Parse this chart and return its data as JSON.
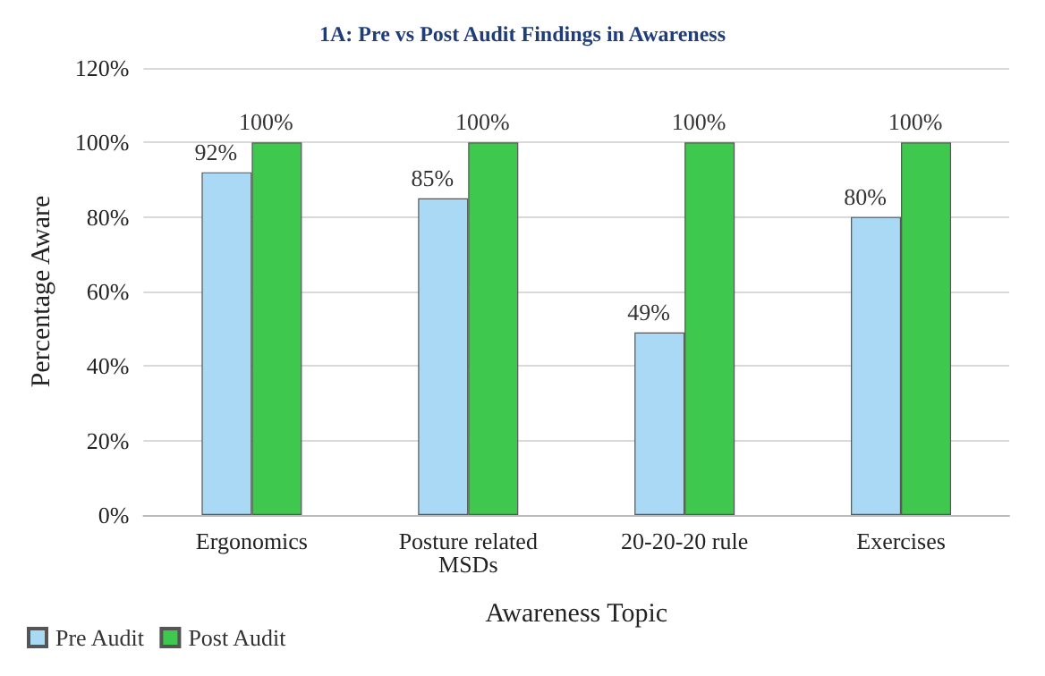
{
  "chart_data": {
    "type": "bar",
    "title": "1A: Pre vs Post Audit Findings in Awareness",
    "xlabel": "Awareness Topic",
    "ylabel": "Percentage Aware",
    "categories": [
      "Ergonomics",
      "Posture related\nMSDs",
      "20-20-20 rule",
      "Exercises"
    ],
    "series": [
      {
        "name": "Pre Audit",
        "color": "#a9d9f5",
        "values": [
          92,
          85,
          49,
          80
        ],
        "value_labels": [
          "92%",
          "85%",
          "49%",
          "80%"
        ]
      },
      {
        "name": "Post Audit",
        "color": "#3ec84d",
        "values": [
          100,
          100,
          100,
          100
        ],
        "value_labels": [
          "100%",
          "100%",
          "100%",
          "100%"
        ]
      }
    ],
    "ylim": [
      0,
      120
    ],
    "yticks": [
      {
        "value": 0,
        "label": "0%"
      },
      {
        "value": 20,
        "label": "20%"
      },
      {
        "value": 40,
        "label": "40%"
      },
      {
        "value": 60,
        "label": "60%"
      },
      {
        "value": 80,
        "label": "80%"
      },
      {
        "value": 100,
        "label": "100%"
      },
      {
        "value": 120,
        "label": "120%"
      }
    ],
    "grid": "y",
    "legend": "bottom left"
  }
}
